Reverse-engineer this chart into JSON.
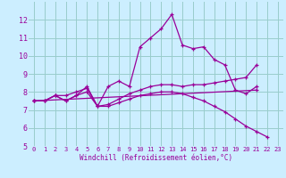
{
  "xlabel": "Windchill (Refroidissement éolien,°C)",
  "xlim": [
    -0.5,
    23.5
  ],
  "ylim": [
    5,
    13
  ],
  "yticks": [
    5,
    6,
    7,
    8,
    9,
    10,
    11,
    12
  ],
  "xticks": [
    0,
    1,
    2,
    3,
    4,
    5,
    6,
    7,
    8,
    9,
    10,
    11,
    12,
    13,
    14,
    15,
    16,
    17,
    18,
    19,
    20,
    21,
    22,
    23
  ],
  "bg_color": "#cceeff",
  "line_color": "#990099",
  "grid_color": "#99cccc",
  "series": [
    {
      "x": [
        0,
        1,
        2,
        3,
        4,
        5,
        6,
        7,
        8,
        9,
        10,
        11,
        12,
        13,
        14,
        15,
        16,
        17,
        18,
        19,
        20,
        21
      ],
      "y": [
        7.5,
        7.5,
        7.8,
        7.5,
        7.8,
        8.3,
        7.2,
        8.3,
        8.6,
        8.3,
        10.5,
        11.0,
        11.5,
        12.3,
        10.6,
        10.4,
        10.5,
        9.8,
        9.5,
        8.1,
        7.9,
        8.3
      ]
    },
    {
      "x": [
        0,
        1,
        2,
        3,
        4,
        5,
        6,
        7,
        8,
        9,
        10,
        11,
        12,
        13,
        14,
        15,
        16,
        17,
        18,
        19,
        20,
        21
      ],
      "y": [
        7.5,
        7.5,
        7.8,
        7.8,
        8.0,
        8.2,
        7.2,
        7.3,
        7.6,
        7.9,
        8.1,
        8.3,
        8.4,
        8.4,
        8.3,
        8.4,
        8.4,
        8.5,
        8.6,
        8.7,
        8.8,
        9.5
      ]
    },
    {
      "x": [
        0,
        1,
        2,
        3,
        4,
        5,
        6,
        7,
        8,
        9,
        10,
        11,
        12,
        13,
        14,
        15,
        16,
        17,
        18,
        19,
        20,
        21,
        22
      ],
      "y": [
        7.5,
        7.5,
        7.8,
        7.5,
        7.8,
        8.0,
        7.2,
        7.2,
        7.4,
        7.6,
        7.8,
        7.9,
        8.0,
        8.0,
        7.9,
        7.7,
        7.5,
        7.2,
        6.9,
        6.5,
        6.1,
        5.8,
        5.5
      ]
    },
    {
      "x": [
        0,
        21
      ],
      "y": [
        7.5,
        8.1
      ]
    }
  ]
}
